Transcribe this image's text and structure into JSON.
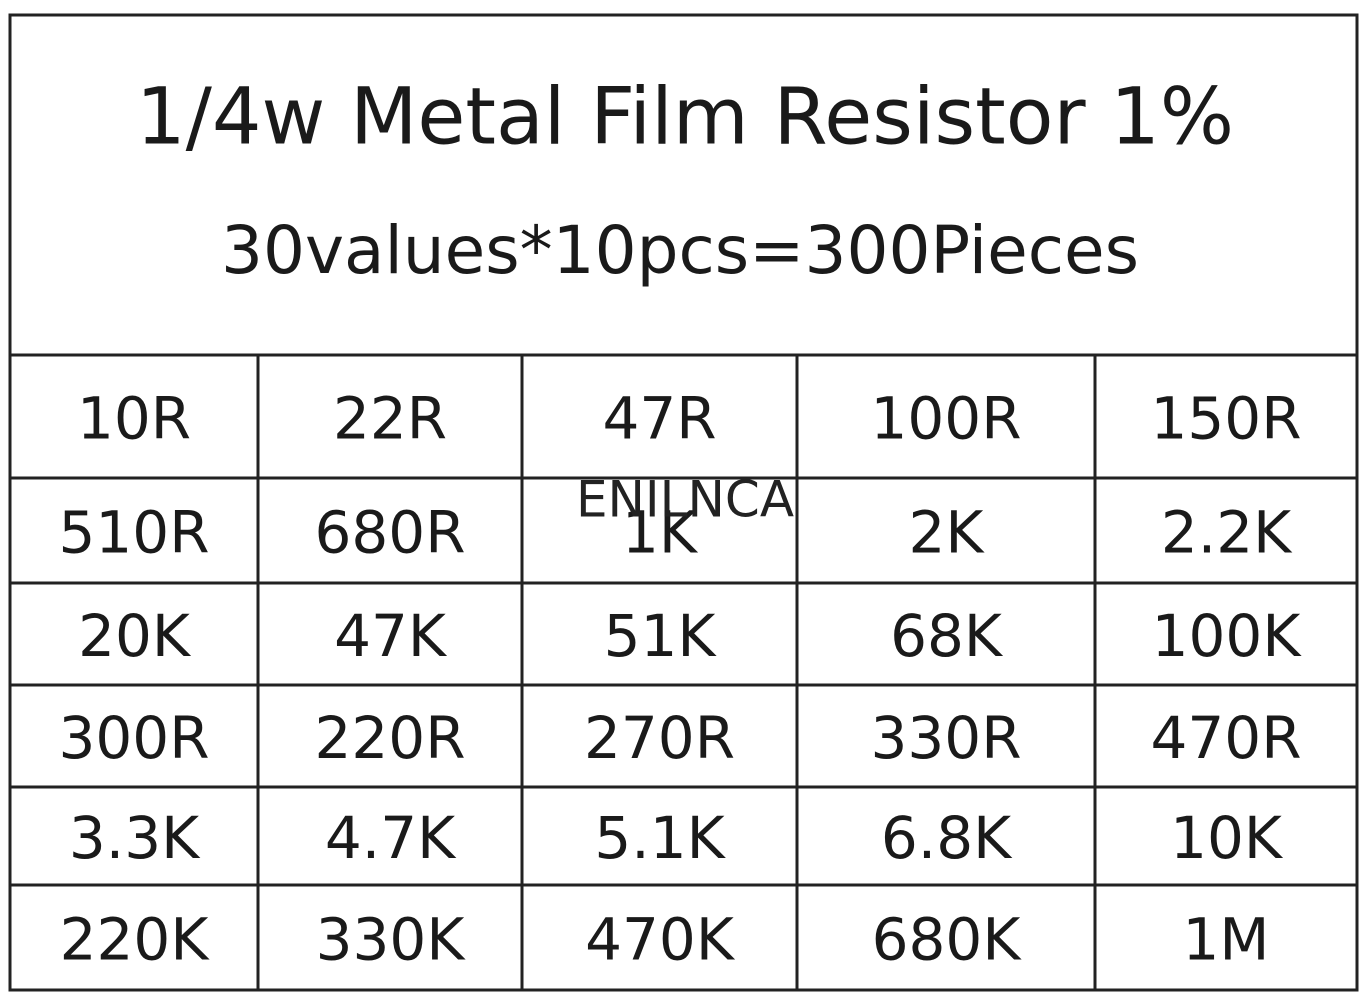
{
  "header": {
    "title": "1/4w Metal Film Resistor 1%",
    "subtitle": "30values*10pcs=300Pieces"
  },
  "table": {
    "rows": [
      [
        "10R",
        "22R",
        "47R",
        "100R",
        "150R"
      ],
      [
        "510R",
        "680R",
        "1K",
        "2K",
        "2.2K"
      ],
      [
        "20K",
        "47K",
        "51K",
        "68K",
        "100K"
      ],
      [
        "300R",
        "220R",
        "270R",
        "330R",
        "470R"
      ],
      [
        "3.3K",
        "4.7K",
        "5.1K",
        "6.8K",
        "10K"
      ],
      [
        "220K",
        "330K",
        "470K",
        "680K",
        "1M"
      ]
    ]
  },
  "watermark": "ENILNCA"
}
